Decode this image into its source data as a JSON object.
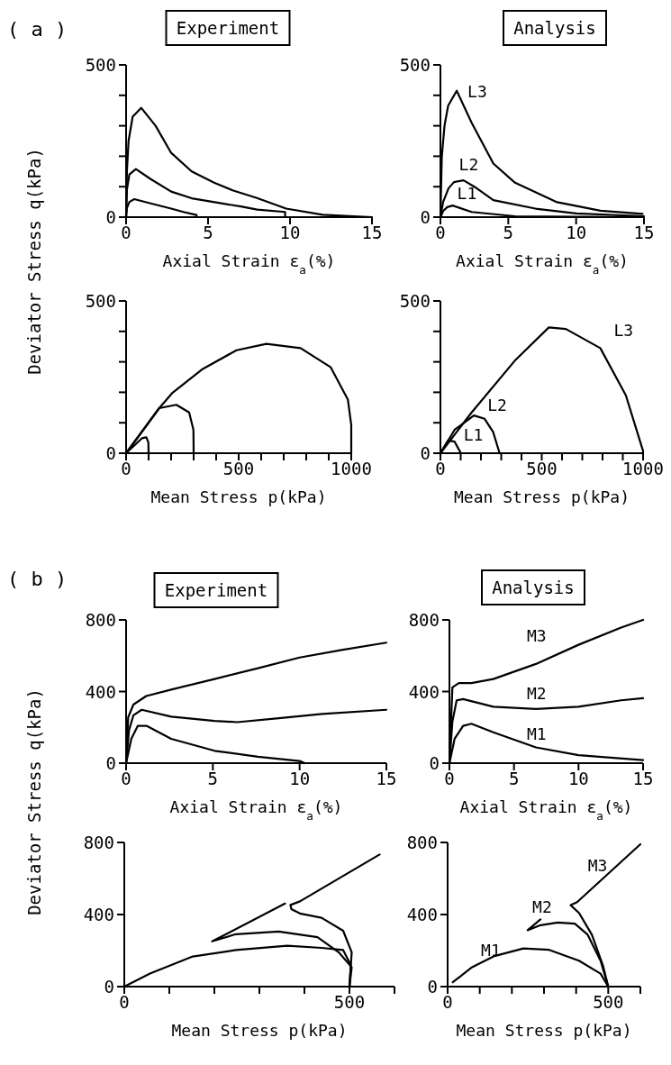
{
  "chart_data": [
    {
      "type": "line",
      "title": "Experiment",
      "ylabel": "Deviator Stress q(kPa)",
      "xlabel": "Axial Strain ε$_{a}$(%)",
      "annotations": [
        "( a )"
      ],
      "xlim": [
        0,
        15
      ],
      "ylim": [
        0,
        500
      ],
      "xticks": [
        0,
        5,
        10,
        15
      ],
      "yticks": [
        0,
        {
          "value": 100,
          "label": null
        },
        {
          "value": 200,
          "label": null
        },
        {
          "value": 300,
          "label": null
        },
        {
          "value": 400,
          "label": null
        },
        500
      ],
      "series": [
        {
          "color": "#000000",
          "x": [
            0,
            0.05,
            0.15,
            0.4,
            0.92,
            1.8,
            2.75,
            4,
            5.37,
            6.5,
            7.98,
            9.76,
            12,
            15
          ],
          "values": [
            0,
            150,
            250,
            330,
            359,
            300,
            211,
            150,
            113,
            88,
            63,
            28,
            8,
            0
          ]
        },
        {
          "color": "#000000",
          "x": [
            0,
            0.05,
            0.2,
            0.6,
            1.5,
            2.75,
            4,
            5.4,
            7,
            8,
            9.7,
            9.7
          ],
          "values": [
            0,
            90,
            140,
            158,
            125,
            84,
            62,
            49,
            35,
            25,
            17,
            0
          ]
        },
        {
          "color": "#000000",
          "x": [
            0,
            0.05,
            0.2,
            0.5,
            1.5,
            2.75,
            3.5,
            4.3,
            4.3
          ],
          "values": [
            0,
            30,
            50,
            59,
            45,
            28,
            17,
            7,
            0
          ]
        }
      ]
    },
    {
      "type": "line",
      "title": "Analysis",
      "xlabel": "Axial Strain ε$_{a}$(%)",
      "xlim": [
        0,
        15
      ],
      "ylim": [
        0,
        500
      ],
      "xticks": [
        0,
        5,
        10,
        15
      ],
      "yticks": [
        0,
        {
          "value": 100,
          "label": null
        },
        {
          "value": 200,
          "label": null
        },
        {
          "value": 300,
          "label": null
        },
        {
          "value": 400,
          "label": null
        },
        500
      ],
      "series": [
        {
          "name": "L3",
          "color": "#000000",
          "x": [
            0,
            0.1,
            0.3,
            0.57,
            1.2,
            2.3,
            3.9,
            5.5,
            8.6,
            11.8,
            14.9
          ],
          "values": [
            0,
            197,
            300,
            366,
            415,
            310,
            176,
            113,
            49,
            21,
            11
          ]
        },
        {
          "name": "L2",
          "color": "#000000",
          "x": [
            0,
            0.2,
            0.6,
            1.0,
            1.7,
            2.5,
            3.9,
            7,
            10,
            15
          ],
          "values": [
            0,
            50,
            95,
            115,
            121,
            100,
            56,
            28,
            12,
            3
          ]
        },
        {
          "name": "L1",
          "color": "#000000",
          "x": [
            0,
            0.2,
            0.5,
            0.9,
            2.3,
            5.5,
            15
          ],
          "values": [
            0,
            20,
            33,
            38,
            17,
            3,
            0
          ]
        }
      ]
    },
    {
      "type": "line",
      "xlabel": "Mean Stress p(kPa)",
      "xlim": [
        0,
        1000
      ],
      "ylim": [
        0,
        500
      ],
      "xticks": [
        0,
        {
          "value": 100,
          "label": null
        },
        {
          "value": 200,
          "label": null
        },
        {
          "value": 300,
          "label": null
        },
        {
          "value": 400,
          "label": null
        },
        500,
        {
          "value": 600,
          "label": null
        },
        {
          "value": 700,
          "label": null
        },
        {
          "value": 800,
          "label": null
        },
        {
          "value": 900,
          "label": null
        },
        1000
      ],
      "yticks": [
        0,
        {
          "value": 100,
          "label": null
        },
        {
          "value": 200,
          "label": null
        },
        {
          "value": 300,
          "label": null
        },
        {
          "value": 400,
          "label": null
        },
        500
      ],
      "series": [
        {
          "color": "#000000",
          "x": [
            0,
            147,
            204,
            337,
            490,
            623,
            775,
            909,
            985,
            1000,
            1000
          ],
          "values": [
            0,
            148,
            197,
            275,
            338,
            359,
            345,
            282,
            176,
            92,
            0
          ]
        },
        {
          "color": "#000000",
          "x": [
            0,
            147,
            223,
            280,
            299,
            300
          ],
          "values": [
            0,
            148,
            159,
            134,
            77,
            0
          ]
        },
        {
          "color": "#000000",
          "x": [
            0,
            70,
            90,
            99,
            100
          ],
          "values": [
            0,
            49,
            52,
            35,
            0
          ]
        }
      ]
    },
    {
      "type": "line",
      "xlabel": "Mean Stress p(kPa)",
      "xlim": [
        0,
        1000
      ],
      "ylim": [
        0,
        500
      ],
      "xticks": [
        0,
        {
          "value": 100,
          "label": null
        },
        {
          "value": 200,
          "label": null
        },
        {
          "value": 300,
          "label": null
        },
        {
          "value": 400,
          "label": null
        },
        500,
        {
          "value": 600,
          "label": null
        },
        {
          "value": 700,
          "label": null
        },
        {
          "value": 800,
          "label": null
        },
        {
          "value": 900,
          "label": null
        },
        1000
      ],
      "yticks": [
        0,
        {
          "value": 100,
          "label": null
        },
        {
          "value": 200,
          "label": null
        },
        {
          "value": 300,
          "label": null
        },
        {
          "value": 400,
          "label": null
        },
        500
      ],
      "series": [
        {
          "name": "L3",
          "color": "#000000",
          "x": [
            0,
            154,
            366,
            535,
            619,
            789,
            915,
            1000,
            1000
          ],
          "values": [
            0,
            134,
            303,
            413,
            408,
            345,
            190,
            7,
            0
          ]
        },
        {
          "name": "L2",
          "color": "#000000",
          "x": [
            0,
            70,
            165,
            218,
            260,
            292
          ],
          "values": [
            0,
            77,
            124,
            113,
            70,
            0
          ]
        },
        {
          "name": "L1",
          "color": "#000000",
          "x": [
            0,
            38,
            70,
            101
          ],
          "values": [
            0,
            42,
            38,
            0
          ]
        }
      ]
    },
    {
      "type": "line",
      "title": "Experiment",
      "ylabel": "Deviator Stress q(kPa)",
      "xlabel": "Axial Strain ε$_{a}$(%)",
      "annotations": [
        "( b )"
      ],
      "xlim": [
        0,
        15
      ],
      "ylim": [
        0,
        800
      ],
      "xticks": [
        0,
        5,
        10,
        15
      ],
      "yticks": [
        0,
        400,
        800
      ],
      "series": [
        {
          "color": "#000000",
          "x": [
            0,
            0.12,
            0.42,
            1.16,
            2.6,
            5.1,
            7.6,
            10,
            12.5,
            15
          ],
          "values": [
            0,
            256,
            327,
            375,
            411,
            470,
            530,
            590,
            633,
            673
          ]
        },
        {
          "color": "#000000",
          "x": [
            0,
            0.17,
            0.42,
            0.9,
            2.6,
            5.1,
            6.4,
            8.8,
            11.3,
            15
          ],
          "values": [
            0,
            184,
            267,
            298,
            260,
            236,
            229,
            251,
            275,
            298
          ]
        },
        {
          "color": "#000000",
          "x": [
            0,
            0.3,
            0.67,
            1.2,
            2.6,
            5.1,
            7.6,
            10,
            10.3
          ],
          "values": [
            0,
            136,
            208,
            208,
            136,
            69,
            36,
            12,
            0
          ]
        }
      ]
    },
    {
      "type": "line",
      "title": "Analysis",
      "xlabel": "Axial Strain ε$_{a}$(%)",
      "xlim": [
        0,
        15
      ],
      "ylim": [
        0,
        800
      ],
      "xticks": [
        0,
        5,
        10,
        15
      ],
      "yticks": [
        0,
        400,
        800
      ],
      "series": [
        {
          "name": "M3",
          "color": "#000000",
          "x": [
            0,
            0.23,
            0.73,
            1.7,
            3.4,
            6.7,
            10,
            13.3,
            15
          ],
          "values": [
            0,
            423,
            447,
            447,
            470,
            554,
            661,
            757,
            800
          ]
        },
        {
          "name": "M2",
          "color": "#000000",
          "x": [
            0,
            0.23,
            0.56,
            1.06,
            3.4,
            6.7,
            10,
            13.3,
            15
          ],
          "values": [
            0,
            232,
            351,
            358,
            315,
            303,
            315,
            351,
            363
          ]
        },
        {
          "name": "M1",
          "color": "#000000",
          "x": [
            0,
            0.4,
            1.06,
            1.7,
            3.4,
            6.7,
            10,
            15
          ],
          "values": [
            0,
            136,
            208,
            220,
            172,
            88,
            45,
            17
          ]
        }
      ]
    },
    {
      "type": "line",
      "xlabel": "Mean Stress p(kPa)",
      "xlim": [
        0,
        600
      ],
      "ylim": [
        0,
        800
      ],
      "xticks": [
        0,
        {
          "value": 100,
          "label": null
        },
        {
          "value": 200,
          "label": null
        },
        {
          "value": 300,
          "label": null
        },
        {
          "value": 400,
          "label": null
        },
        500,
        {
          "value": 600,
          "label": null
        }
      ],
      "yticks": [
        0,
        400,
        800
      ],
      "series": [
        {
          "color": "#000000",
          "x": [
            500,
            505,
            486,
            438,
            390,
            371,
            369,
            390,
            567
          ],
          "values": [
            0,
            191,
            310,
            382,
            406,
            430,
            453,
            473,
            733
          ]
        },
        {
          "color": "#000000",
          "x": [
            500,
            505,
            476,
            429,
            343,
            248,
            195,
            357
          ],
          "values": [
            0,
            107,
            191,
            274,
            306,
            291,
            251,
            461
          ]
        },
        {
          "color": "#000000",
          "x": [
            500,
            503,
            486,
            438,
            362,
            248,
            152,
            57,
            0
          ],
          "values": [
            0,
            119,
            203,
            215,
            227,
            203,
            167,
            72,
            0
          ]
        }
      ]
    },
    {
      "type": "line",
      "xlabel": "Mean Stress p(kPa)",
      "xlim": [
        0,
        600
      ],
      "ylim": [
        0,
        800
      ],
      "xticks": [
        0,
        {
          "value": 100,
          "label": null
        },
        {
          "value": 200,
          "label": null
        },
        {
          "value": 300,
          "label": null
        },
        {
          "value": 400,
          "label": null
        },
        500,
        {
          "value": 600,
          "label": null
        }
      ],
      "yticks": [
        0,
        400,
        800
      ],
      "series": [
        {
          "name": "M3",
          "color": "#000000",
          "x": [
            500,
            483,
            449,
            409,
            383,
            403,
            600
          ],
          "values": [
            0,
            120,
            288,
            409,
            452,
            469,
            790
          ]
        },
        {
          "name": "M2",
          "color": "#000000",
          "x": [
            500,
            476,
            436,
            396,
            343,
            289,
            249,
            289
          ],
          "values": [
            0,
            144,
            288,
            349,
            356,
            341,
            313,
            373
          ]
        },
        {
          "name": "M1",
          "color": "#000000",
          "x": [
            500,
            476,
            409,
            316,
            236,
            143,
            76,
            16
          ],
          "values": [
            0,
            72,
            144,
            204,
            212,
            168,
            108,
            24
          ]
        }
      ]
    }
  ]
}
